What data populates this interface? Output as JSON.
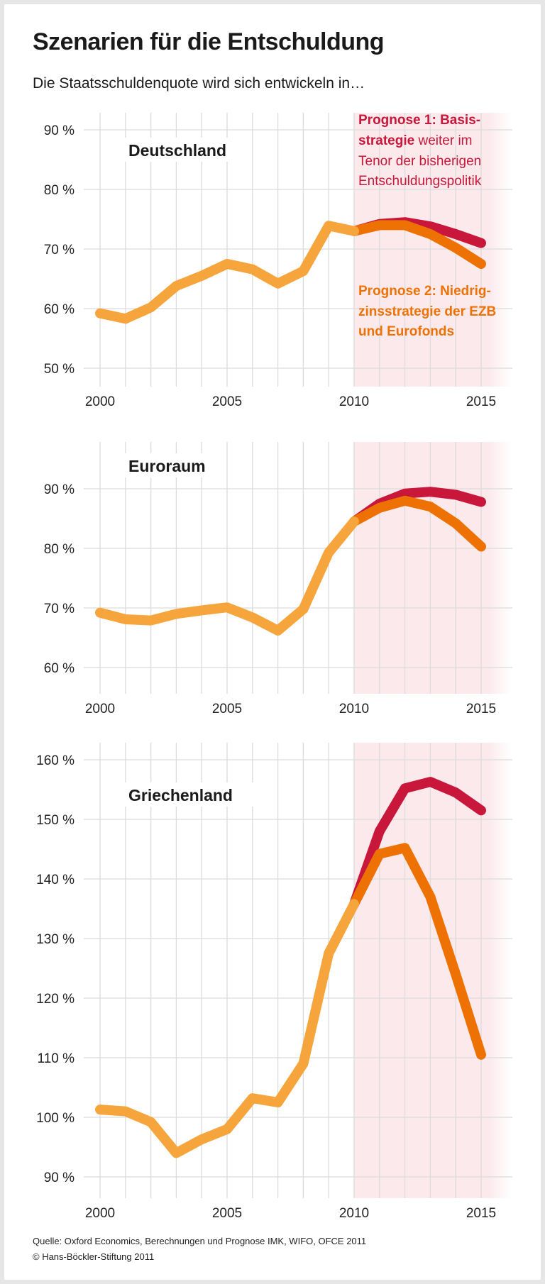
{
  "title": "Szenarien für die Entschuldung",
  "subtitle": "Die Staatsschuldenquote wird sich entwickeln in…",
  "legend": {
    "prognose1_bold": "Prognose 1: Basis-",
    "prognose1_line2_bold": "strategie",
    "prognose1_line2_rest": " weiter im",
    "prognose1_line3": "Tenor der bisherigen",
    "prognose1_line4": "Entschuldungspolitik",
    "prognose2_line1": "Prognose 2: Niedrig-",
    "prognose2_line2": "zinsstrategie der EZB",
    "prognose2_line3": "und Eurofonds"
  },
  "colors": {
    "history": "#f5a53c",
    "prognose1": "#c8173a",
    "prognose2": "#ee7203",
    "forecast_band": "#fbe9ec",
    "grid": "#dcdcdc"
  },
  "source": "Quelle: Oxford Economics, Berechnungen und Prognose IMK, WIFO, OFCE 2011",
  "copyright": "© Hans-Böckler-Stiftung 2011",
  "chart_data": [
    {
      "type": "line",
      "title": "Deutschland",
      "x_ticks": [
        "2000",
        "2005",
        "2010",
        "2015"
      ],
      "y_ticks": [
        50,
        60,
        70,
        80,
        90
      ],
      "y_tick_labels": [
        "50 %",
        "60 %",
        "70 %",
        "80 %",
        "90 %"
      ],
      "ylim": [
        50,
        90
      ],
      "xlim": [
        2000,
        2015
      ],
      "forecast_from": 2010,
      "grid": true,
      "series": [
        {
          "key": "history",
          "x": [
            2000,
            2001,
            2002,
            2003,
            2004,
            2005,
            2006,
            2007,
            2008,
            2009,
            2010
          ],
          "values": [
            59.2,
            58.3,
            60.2,
            63.8,
            65.5,
            67.5,
            66.6,
            64.2,
            66.3,
            73.9,
            73.0
          ]
        },
        {
          "key": "prognose1",
          "name": "Prognose 1: Basisstrategie",
          "x": [
            2010,
            2011,
            2012,
            2013,
            2014,
            2015
          ],
          "values": [
            73.0,
            74.2,
            74.5,
            73.8,
            72.5,
            71.0
          ]
        },
        {
          "key": "prognose2",
          "name": "Prognose 2: Niedrigzinsstrategie",
          "x": [
            2010,
            2011,
            2012,
            2013,
            2014,
            2015
          ],
          "values": [
            73.0,
            74.0,
            74.0,
            72.5,
            70.2,
            67.5
          ]
        }
      ]
    },
    {
      "type": "line",
      "title": "Euroraum",
      "x_ticks": [
        "2000",
        "2005",
        "2010",
        "2015"
      ],
      "y_ticks": [
        60,
        70,
        80,
        90
      ],
      "y_tick_labels": [
        "60 %",
        "70 %",
        "80 %",
        "90 %"
      ],
      "ylim": [
        56,
        94
      ],
      "xlim": [
        2000,
        2015
      ],
      "forecast_from": 2010,
      "grid": true,
      "series": [
        {
          "key": "history",
          "x": [
            2000,
            2001,
            2002,
            2003,
            2004,
            2005,
            2006,
            2007,
            2008,
            2009,
            2010
          ],
          "values": [
            69.2,
            68.1,
            67.9,
            69.0,
            69.6,
            70.1,
            68.4,
            66.2,
            69.8,
            79.3,
            84.5
          ]
        },
        {
          "key": "prognose1",
          "name": "Prognose 1: Basisstrategie",
          "x": [
            2010,
            2011,
            2012,
            2013,
            2014,
            2015
          ],
          "values": [
            84.5,
            87.5,
            89.2,
            89.5,
            89.0,
            87.8
          ]
        },
        {
          "key": "prognose2",
          "name": "Prognose 2: Niedrigzinsstrategie",
          "x": [
            2010,
            2011,
            2012,
            2013,
            2014,
            2015
          ],
          "values": [
            84.5,
            86.8,
            88.0,
            87.0,
            84.2,
            80.3
          ]
        }
      ]
    },
    {
      "type": "line",
      "title": "Griechenland",
      "x_ticks": [
        "2000",
        "2005",
        "2010",
        "2015"
      ],
      "y_ticks": [
        90,
        100,
        110,
        120,
        130,
        140,
        150,
        160
      ],
      "y_tick_labels": [
        "90 %",
        "100 %",
        "110 %",
        "120 %",
        "130 %",
        "140 %",
        "150 %",
        "160 %"
      ],
      "ylim": [
        87,
        162
      ],
      "xlim": [
        2000,
        2015
      ],
      "forecast_from": 2010,
      "grid": true,
      "series": [
        {
          "key": "history",
          "x": [
            2000,
            2001,
            2002,
            2003,
            2004,
            2005,
            2006,
            2007,
            2008,
            2009,
            2010
          ],
          "values": [
            101.3,
            101.0,
            99.2,
            94.0,
            96.3,
            98.0,
            103.2,
            102.5,
            109.0,
            127.5,
            135.8
          ]
        },
        {
          "key": "prognose1",
          "name": "Prognose 1: Basisstrategie",
          "x": [
            2010,
            2011,
            2012,
            2013,
            2014,
            2015
          ],
          "values": [
            135.8,
            148.0,
            155.2,
            156.3,
            154.5,
            151.5
          ]
        },
        {
          "key": "prognose2",
          "name": "Prognose 2: Niedrigzinsstrategie",
          "x": [
            2010,
            2011,
            2012,
            2013,
            2014,
            2015
          ],
          "values": [
            135.8,
            144.2,
            145.2,
            137.0,
            124.0,
            110.5
          ]
        }
      ]
    }
  ]
}
